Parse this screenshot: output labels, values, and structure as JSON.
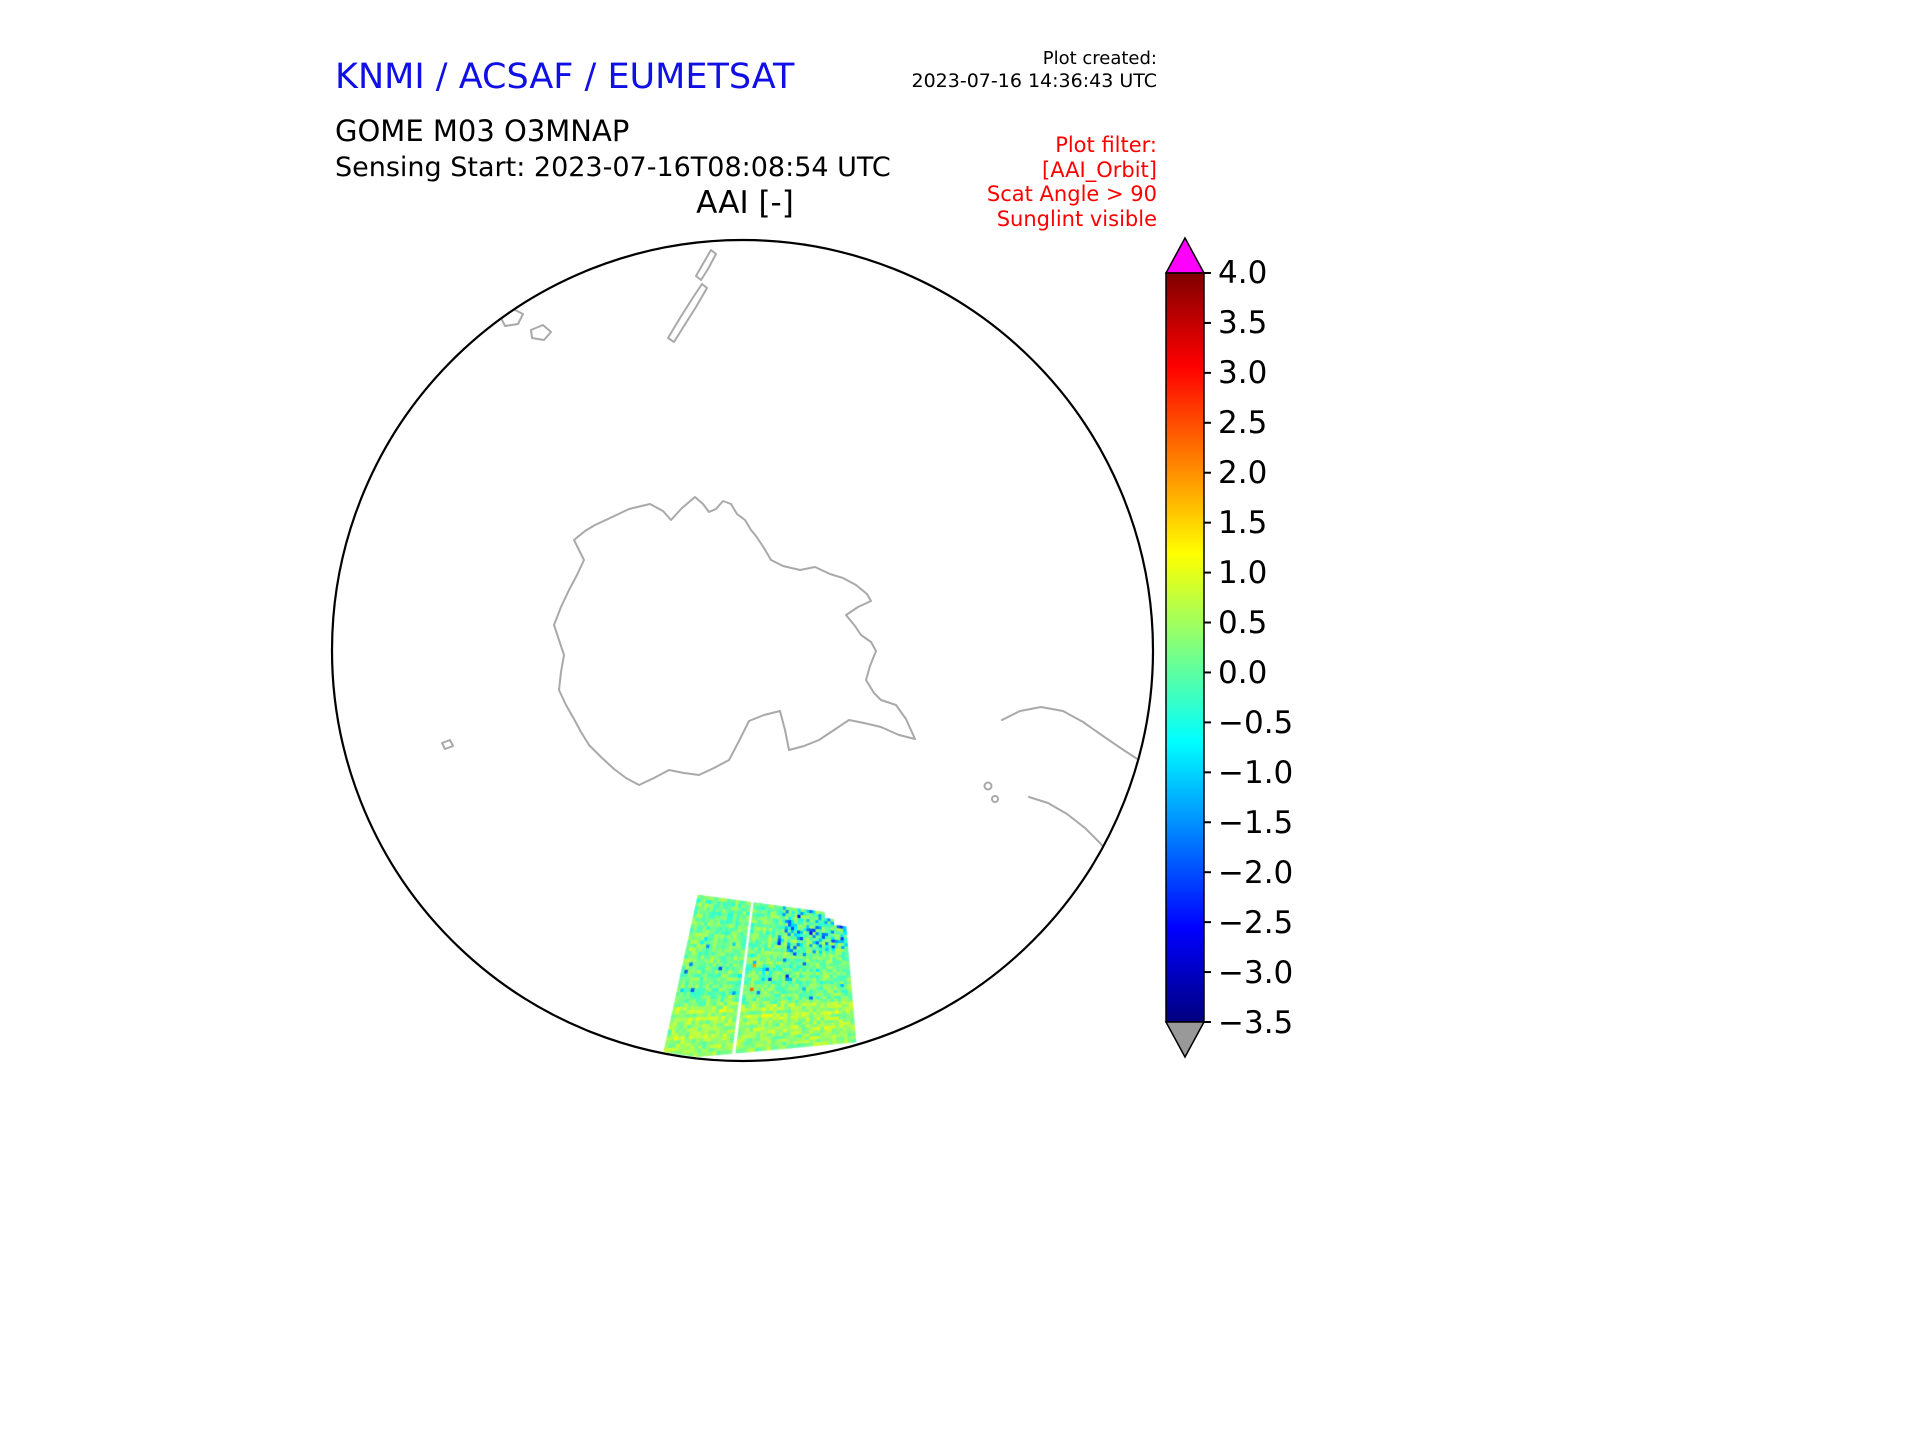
{
  "colors": {
    "page_bg": "#ffffff",
    "agency_blue": "#0f0fe6",
    "filter_red": "#ff0000",
    "text_black": "#000000",
    "coastline_gray": "#a9a9a9",
    "map_outline": "#000000",
    "colorbar_over": "#ff00ff",
    "colorbar_under": "#999999"
  },
  "header": {
    "agency_title": "KNMI / ACSAF / EUMETSAT",
    "plot_created_label": "Plot created:",
    "plot_created_value": "2023-07-16 14:36:43 UTC",
    "product_title": "GOME M03 O3MNAP",
    "sensing_start": "Sensing Start: 2023-07-16T08:08:54 UTC",
    "plot_title": "AAI [-]"
  },
  "plot_filter": {
    "label": "Plot filter:",
    "line1": "[AAI_Orbit]",
    "line2": "Scat Angle > 90",
    "line3": "Sunglint visible"
  },
  "chart_data": {
    "type": "heatmap",
    "title": "AAI [-]",
    "product": "GOME M03 O3MNAP",
    "sensing_start_utc": "2023-07-16T08:08:54 UTC",
    "plot_created_utc": "2023-07-16 14:36:43 UTC",
    "projection": "south polar stereographic disc",
    "map_features": [
      "Antarctica coastline",
      "New Zealand",
      "Tasmania area islands",
      "southern South America coast",
      "small subantarctic islands"
    ],
    "colorbar": {
      "quantity": "AAI [-]",
      "min": -3.5,
      "max": 4.0,
      "tick_step": 0.5,
      "tick_labels": [
        "4.0",
        "3.5",
        "3.0",
        "2.5",
        "2.0",
        "1.5",
        "1.0",
        "0.5",
        "0.0",
        "−0.5",
        "−1.0",
        "−1.5",
        "−2.0",
        "−2.5",
        "−3.0",
        "−3.5"
      ],
      "colormap": "jet",
      "over_arrow_color": "#ff00ff",
      "under_arrow_color": "#999999",
      "orientation": "vertical",
      "position": "right"
    },
    "swath": {
      "description": "Single GOME-2 orbit swath rendered near the bottom of the polar disc; mostly green/cyan pixels with AAI near 0, scattered dark-blue negative pixels concentrated in the upper-right part, a few orange/red positive pixels near the centre, and a thin white seam line through the swath",
      "typical_value_range": [
        -1.0,
        1.0
      ],
      "extreme_low": -2.8,
      "extreme_high": 3.0
    }
  }
}
